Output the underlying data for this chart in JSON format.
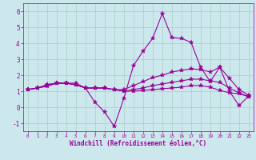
{
  "xlabel": "Windchill (Refroidissement éolien,°C)",
  "bg_color": "#cce8ec",
  "line_color": "#990099",
  "grid_color": "#aacccc",
  "xlim": [
    -0.5,
    23.5
  ],
  "ylim": [
    -1.5,
    6.5
  ],
  "yticks": [
    -1,
    0,
    1,
    2,
    3,
    4,
    5,
    6
  ],
  "xticks": [
    0,
    1,
    2,
    3,
    4,
    5,
    6,
    7,
    8,
    9,
    10,
    11,
    12,
    13,
    14,
    15,
    16,
    17,
    18,
    19,
    20,
    21,
    22,
    23
  ],
  "line1_x": [
    0,
    1,
    2,
    3,
    4,
    5,
    6,
    7,
    8,
    9,
    10,
    11,
    12,
    13,
    14,
    15,
    16,
    17,
    18,
    19,
    20,
    21,
    22,
    23
  ],
  "line1_y": [
    1.1,
    1.2,
    1.4,
    1.5,
    1.5,
    1.5,
    1.2,
    0.3,
    -0.3,
    -1.2,
    0.55,
    2.6,
    3.5,
    4.3,
    5.85,
    4.35,
    4.3,
    4.05,
    2.5,
    1.6,
    2.5,
    1.0,
    0.1,
    0.7
  ],
  "line2_x": [
    0,
    1,
    2,
    3,
    4,
    5,
    6,
    7,
    8,
    9,
    10,
    11,
    12,
    13,
    14,
    15,
    16,
    17,
    18,
    19,
    20,
    21,
    22,
    23
  ],
  "line2_y": [
    1.1,
    1.2,
    1.4,
    1.5,
    1.5,
    1.4,
    1.2,
    1.2,
    1.2,
    1.1,
    1.1,
    1.35,
    1.6,
    1.85,
    2.0,
    2.2,
    2.3,
    2.4,
    2.35,
    2.2,
    2.5,
    1.8,
    1.1,
    0.75
  ],
  "line3_x": [
    0,
    1,
    2,
    3,
    4,
    5,
    6,
    7,
    8,
    9,
    10,
    11,
    12,
    13,
    14,
    15,
    16,
    17,
    18,
    19,
    20,
    21,
    22,
    23
  ],
  "line3_y": [
    1.1,
    1.2,
    1.3,
    1.5,
    1.5,
    1.4,
    1.2,
    1.2,
    1.2,
    1.1,
    1.0,
    1.1,
    1.2,
    1.35,
    1.45,
    1.55,
    1.65,
    1.75,
    1.75,
    1.65,
    1.55,
    1.2,
    0.9,
    0.65
  ],
  "line4_x": [
    0,
    1,
    2,
    3,
    4,
    5,
    6,
    7,
    8,
    9,
    10,
    11,
    12,
    13,
    14,
    15,
    16,
    17,
    18,
    19,
    20,
    21,
    22,
    23
  ],
  "line4_y": [
    1.1,
    1.2,
    1.4,
    1.5,
    1.5,
    1.4,
    1.2,
    1.2,
    1.2,
    1.1,
    1.0,
    1.0,
    1.05,
    1.1,
    1.15,
    1.2,
    1.25,
    1.35,
    1.35,
    1.25,
    1.05,
    0.9,
    0.85,
    0.65
  ]
}
